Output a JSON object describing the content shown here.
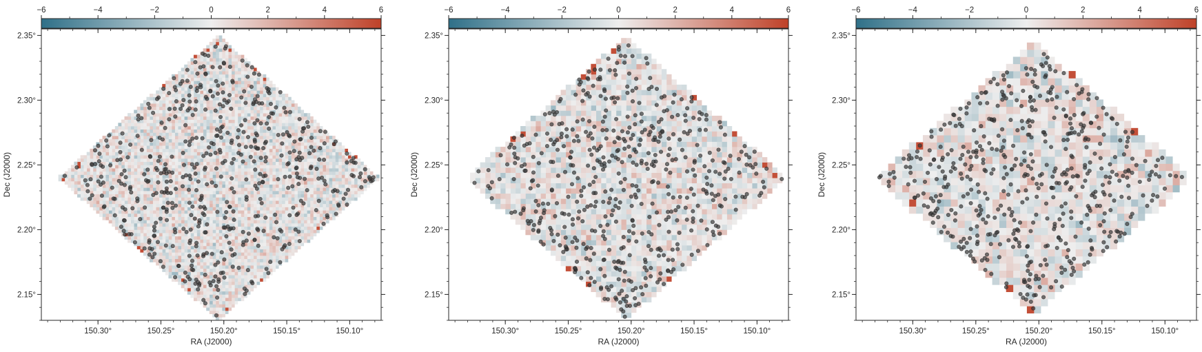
{
  "chart_data": [
    {
      "type": "heatmap",
      "xlabel": "RA (J2000)",
      "ylabel": "Dec (J2000)",
      "xlim": [
        150.345,
        150.075
      ],
      "ylim": [
        2.13,
        2.355
      ],
      "xticks": [
        150.3,
        150.25,
        150.2,
        150.15,
        150.1
      ],
      "xtick_labels": [
        "150.30°",
        "150.25°",
        "150.20°",
        "150.15°",
        "150.10°"
      ],
      "yticks": [
        2.15,
        2.2,
        2.25,
        2.3,
        2.35
      ],
      "ytick_labels": [
        "2.15°",
        "2.20°",
        "2.25°",
        "2.30°",
        "2.35°"
      ],
      "footprint": {
        "center": [
          150.204,
          2.24
        ],
        "half_ra": 0.128,
        "half_dec": 0.11
      },
      "pixel_scale_deg": 0.0025,
      "colorbar": {
        "range": [
          -6,
          6
        ],
        "ticks": [
          -6,
          -4,
          -2,
          0,
          2,
          4,
          6
        ],
        "tick_labels": [
          "−6",
          "−4",
          "−2",
          "0",
          "2",
          "4",
          "6"
        ],
        "location": "top",
        "cmap": [
          "#2f7088",
          "#eeeeee",
          "#bf4128"
        ]
      },
      "markers": {
        "count": 560,
        "color": "#3a3a3a",
        "style": "circle"
      },
      "grid": false
    },
    {
      "type": "heatmap",
      "xlabel": "RA (J2000)",
      "ylabel": "Dec (J2000)",
      "xlim": [
        150.345,
        150.075
      ],
      "ylim": [
        2.13,
        2.355
      ],
      "xticks": [
        150.3,
        150.25,
        150.2,
        150.15,
        150.1
      ],
      "xtick_labels": [
        "150.30°",
        "150.25°",
        "150.20°",
        "150.15°",
        "150.10°"
      ],
      "yticks": [
        2.15,
        2.2,
        2.25,
        2.3,
        2.35
      ],
      "ytick_labels": [
        "2.15°",
        "2.20°",
        "2.25°",
        "2.30°",
        "2.35°"
      ],
      "footprint": {
        "center": [
          150.204,
          2.24
        ],
        "half_ra": 0.128,
        "half_dec": 0.11
      },
      "pixel_scale_deg": 0.004,
      "colorbar": {
        "range": [
          -6,
          6
        ],
        "ticks": [
          -6,
          -4,
          -2,
          0,
          2,
          4,
          6
        ],
        "tick_labels": [
          "−6",
          "−4",
          "−2",
          "0",
          "2",
          "4",
          "6"
        ],
        "location": "top",
        "cmap": [
          "#2f7088",
          "#eeeeee",
          "#bf4128"
        ]
      },
      "markers": {
        "count": 560,
        "color": "#3a3a3a",
        "style": "circle"
      },
      "grid": false
    },
    {
      "type": "heatmap",
      "xlabel": "RA (J2000)",
      "ylabel": "Dec (J2000)",
      "xlim": [
        150.345,
        150.075
      ],
      "ylim": [
        2.13,
        2.355
      ],
      "xticks": [
        150.3,
        150.25,
        150.2,
        150.15,
        150.1
      ],
      "xtick_labels": [
        "150.30°",
        "150.25°",
        "150.20°",
        "150.15°",
        "150.10°"
      ],
      "yticks": [
        2.15,
        2.2,
        2.25,
        2.3,
        2.35
      ],
      "ytick_labels": [
        "2.15°",
        "2.20°",
        "2.25°",
        "2.30°",
        "2.35°"
      ],
      "footprint": {
        "center": [
          150.204,
          2.24
        ],
        "half_ra": 0.126,
        "half_dec": 0.106
      },
      "pixel_scale_deg": 0.0055,
      "colorbar": {
        "range": [
          -6,
          6
        ],
        "ticks": [
          -6,
          -4,
          -2,
          0,
          2,
          4,
          6
        ],
        "tick_labels": [
          "−6",
          "−4",
          "−2",
          "0",
          "2",
          "4",
          "6"
        ],
        "location": "top",
        "cmap": [
          "#2f7088",
          "#eeeeee",
          "#bf4128"
        ]
      },
      "markers": {
        "count": 540,
        "color": "#3a3a3a",
        "style": "circle"
      },
      "grid": false
    }
  ]
}
